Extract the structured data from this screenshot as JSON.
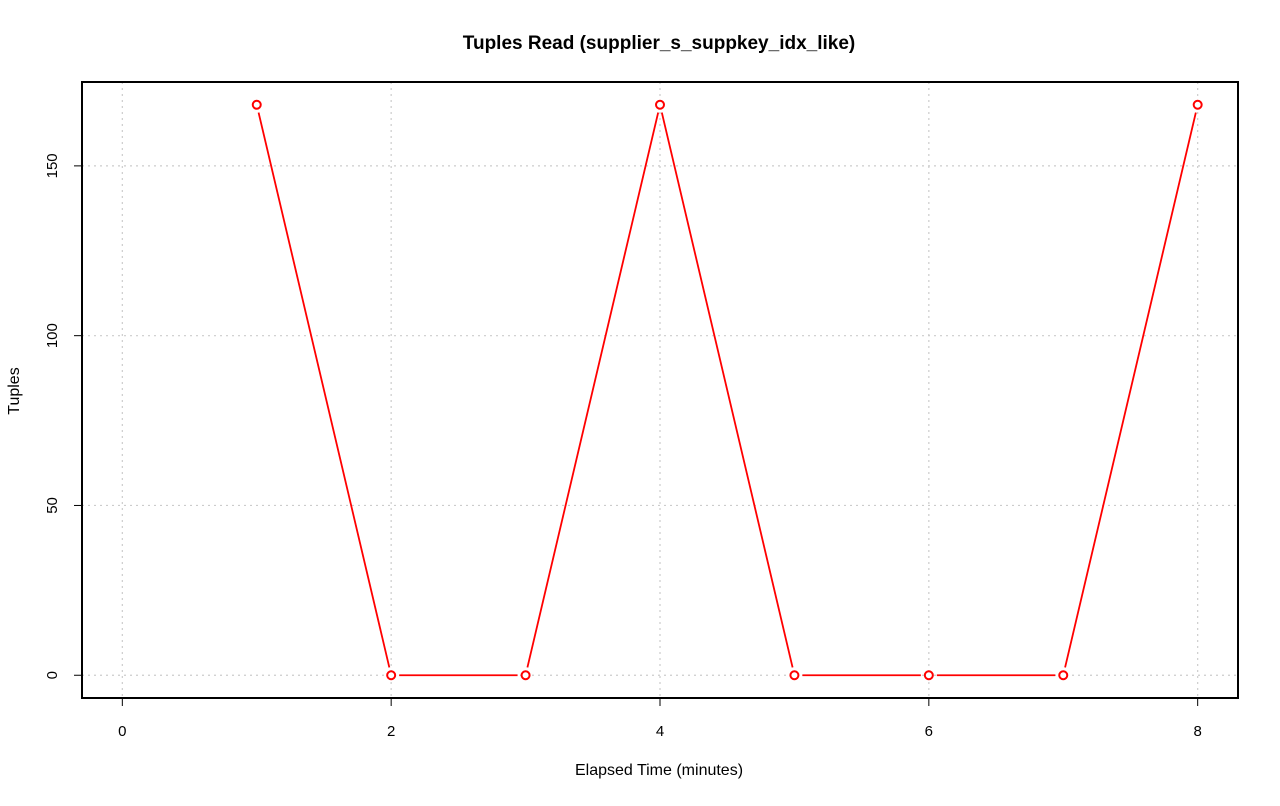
{
  "chart_data": {
    "type": "line",
    "title": "Tuples Read (supplier_s_suppkey_idx_like)",
    "xlabel": "Elapsed Time (minutes)",
    "ylabel": "Tuples",
    "xlim": [
      -0.3,
      8.3
    ],
    "ylim": [
      -6.7,
      174.7
    ],
    "x_ticks": [
      0,
      2,
      4,
      6,
      8
    ],
    "y_ticks": [
      0,
      50,
      100,
      150
    ],
    "grid": true,
    "series": [
      {
        "color": "#ff0000",
        "marker": "open-circle",
        "x": [
          1,
          2,
          3,
          4,
          5,
          6,
          7,
          8
        ],
        "y": [
          168,
          0,
          0,
          168,
          0,
          0,
          0,
          168
        ]
      }
    ]
  }
}
